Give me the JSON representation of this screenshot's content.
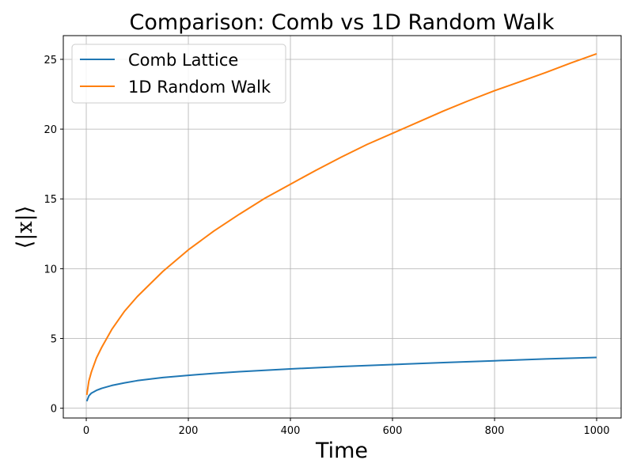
{
  "chart_data": {
    "type": "line",
    "title": "Comparison: Comb vs 1D Random Walk",
    "xlabel": "Time",
    "ylabel": "⟨|x|⟩",
    "xlim": [
      -45,
      1048
    ],
    "ylim": [
      -0.7,
      26.7
    ],
    "xticks": [
      0,
      200,
      400,
      600,
      800,
      1000
    ],
    "yticks": [
      0,
      5,
      10,
      15,
      20,
      25
    ],
    "grid": true,
    "legend_position": "top-left",
    "series": [
      {
        "name": "Comb Lattice",
        "color": "#1f77b4",
        "x": [
          1,
          5,
          10,
          20,
          30,
          50,
          75,
          100,
          150,
          200,
          250,
          300,
          400,
          500,
          600,
          700,
          800,
          900,
          1000
        ],
        "y": [
          0.5,
          0.88,
          1.08,
          1.28,
          1.42,
          1.63,
          1.82,
          1.98,
          2.2,
          2.36,
          2.5,
          2.62,
          2.82,
          2.99,
          3.13,
          3.27,
          3.4,
          3.53,
          3.64
        ]
      },
      {
        "name": "1D Random Walk",
        "color": "#ff7f0e",
        "x": [
          1,
          5,
          10,
          20,
          30,
          50,
          75,
          100,
          150,
          200,
          250,
          300,
          350,
          400,
          450,
          500,
          550,
          600,
          650,
          700,
          750,
          800,
          850,
          900,
          950,
          1000
        ],
        "y": [
          0.95,
          1.95,
          2.6,
          3.6,
          4.35,
          5.65,
          6.95,
          8.0,
          9.8,
          11.35,
          12.7,
          13.9,
          15.05,
          16.05,
          17.05,
          18.0,
          18.9,
          19.7,
          20.5,
          21.3,
          22.05,
          22.75,
          23.4,
          24.05,
          24.75,
          25.4
        ]
      }
    ]
  }
}
